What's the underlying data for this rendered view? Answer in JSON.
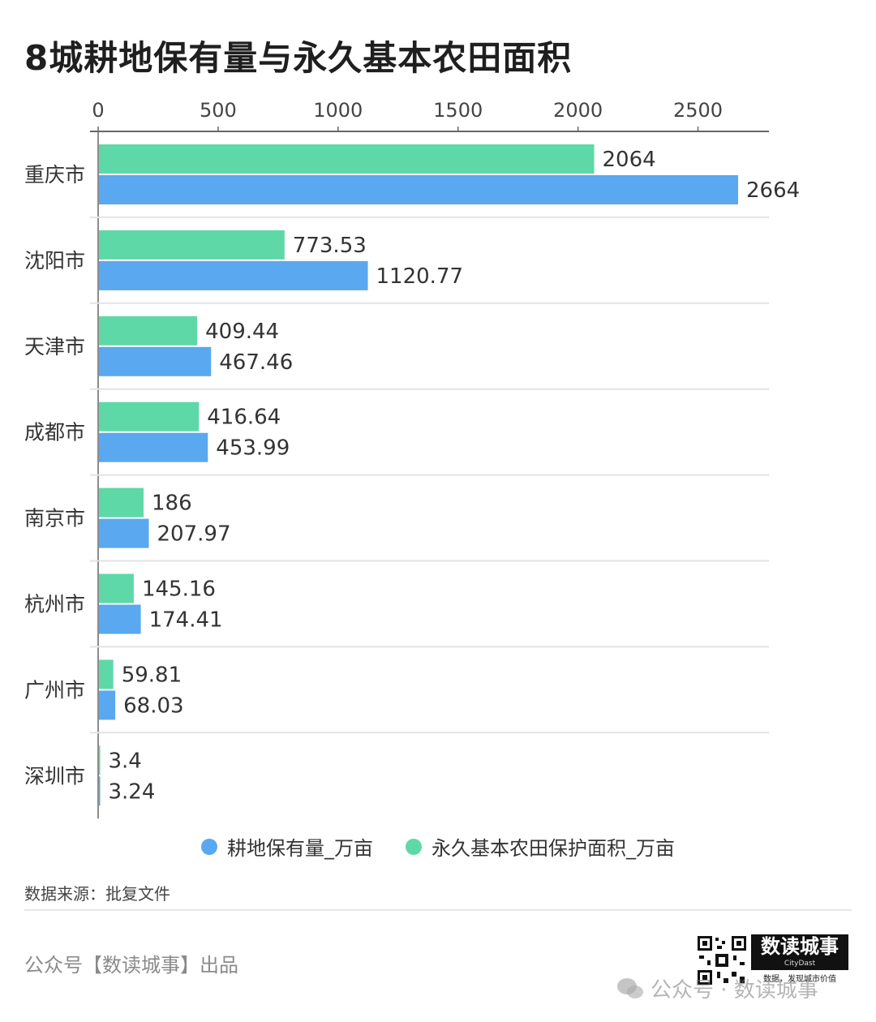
{
  "title": "8城耕地保有量与永久基本农田面积",
  "colors": {
    "cultivated": "#5aa8ef",
    "farmland": "#5fd8a8",
    "axis": "#666666",
    "grid": "#e3e3e3"
  },
  "legend": {
    "cultivated_label": "耕地保有量_万亩",
    "farmland_label": "永久基本农田保护面积_万亩"
  },
  "source": "数据来源：批复文件",
  "publisher": "公众号【数读城事】出品",
  "brand": {
    "name": "数读城事",
    "english": "CityDast",
    "slogan": "数据，发现城市价值"
  },
  "watermark": "公众号 · 数读城事",
  "chart_data": {
    "type": "bar",
    "orientation": "horizontal",
    "categories": [
      "重庆市",
      "沈阳市",
      "天津市",
      "成都市",
      "南京市",
      "杭州市",
      "广州市",
      "深圳市"
    ],
    "series": [
      {
        "name": "永久基本农田保护面积_万亩",
        "values": [
          2064,
          773.53,
          409.44,
          416.64,
          186,
          145.16,
          59.81,
          3.4
        ]
      },
      {
        "name": "耕地保有量_万亩",
        "values": [
          2664,
          1120.77,
          467.46,
          453.99,
          207.97,
          174.41,
          68.03,
          3.24
        ]
      }
    ],
    "value_labels": [
      [
        "2064",
        "773.53",
        "409.44",
        "416.64",
        "186",
        "145.16",
        "59.81",
        "3.4"
      ],
      [
        "2664",
        "1120.77",
        "467.46",
        "453.99",
        "207.97",
        "174.41",
        "68.03",
        "3.24"
      ]
    ],
    "xlim": [
      0,
      2800
    ],
    "xticks": [
      0,
      500,
      1000,
      1500,
      2000,
      2500
    ],
    "axis_position": "top",
    "grid": false,
    "legend_position": "bottom"
  }
}
